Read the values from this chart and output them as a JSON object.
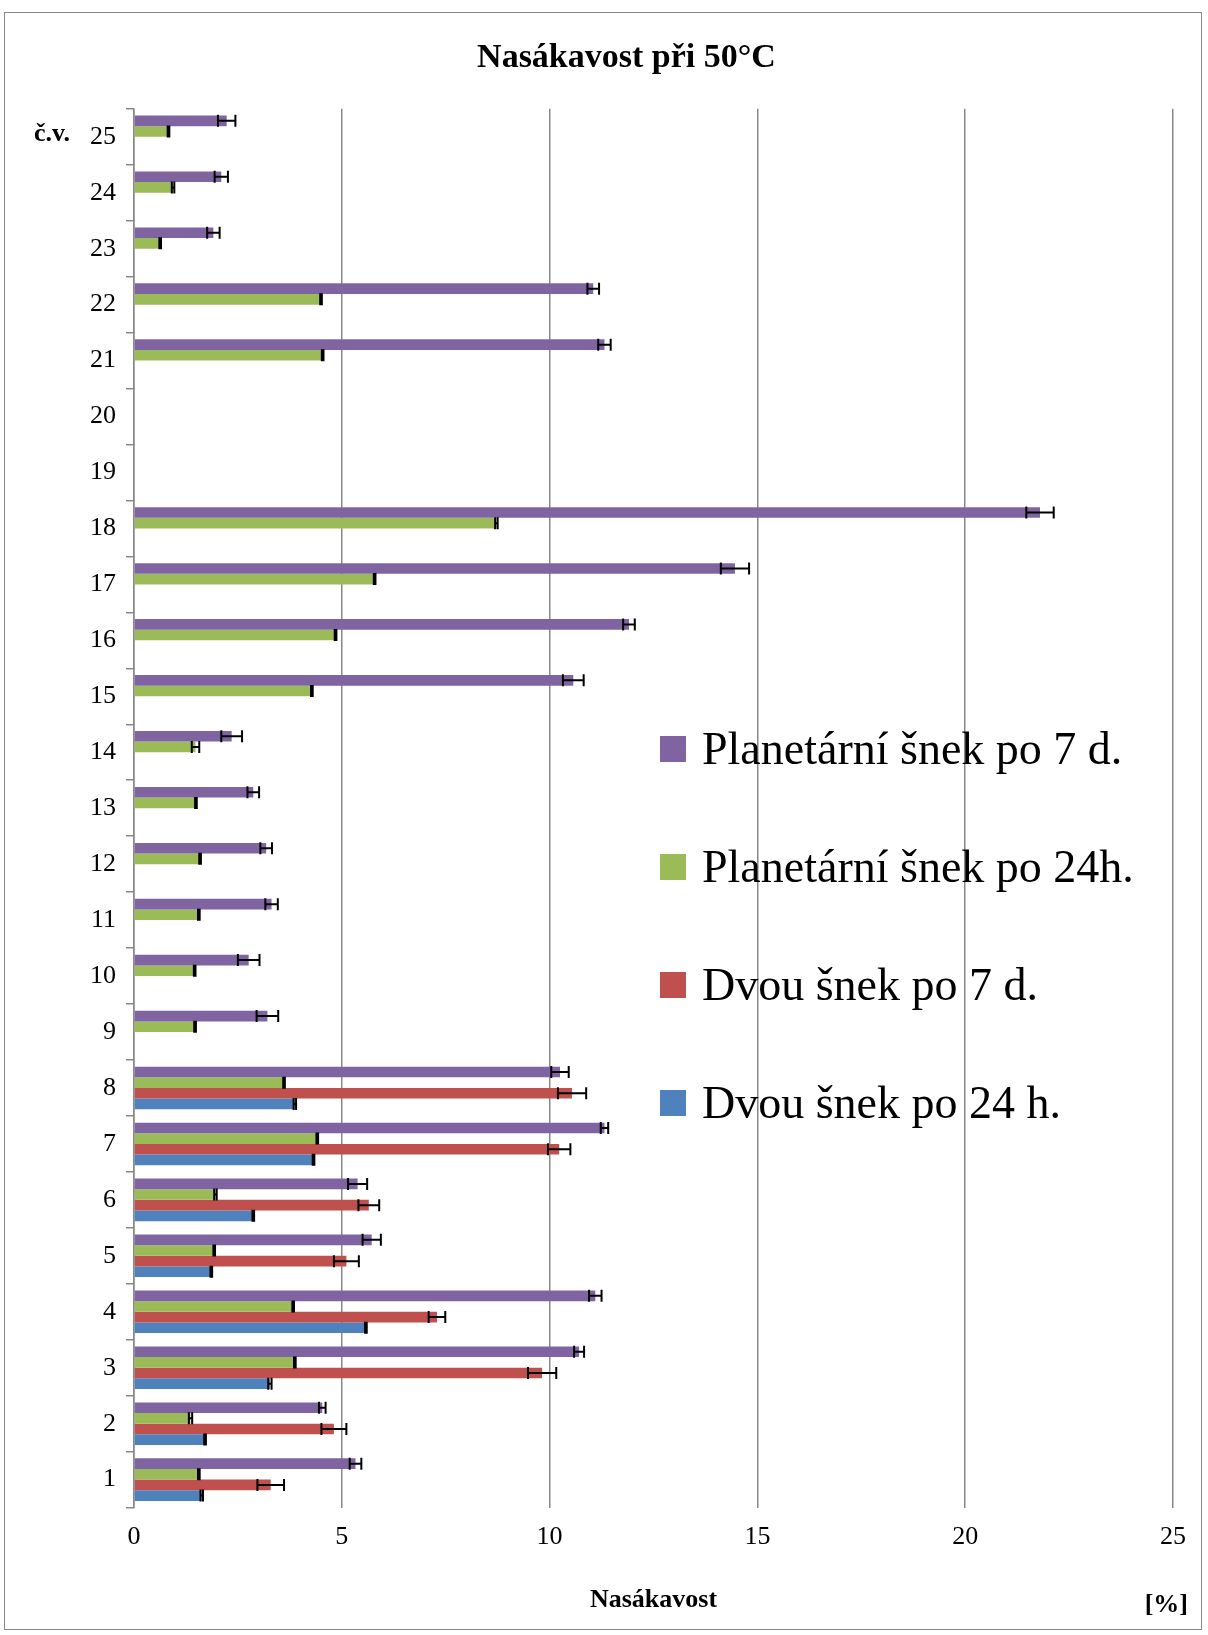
{
  "chart_data": {
    "type": "bar",
    "orientation": "horizontal",
    "title": "Nasákavost při 50°C",
    "xlabel": "Nasákavost",
    "ylabel": "č.v.",
    "annotations": [
      "[%]"
    ],
    "categories": [
      "25",
      "24",
      "23",
      "22",
      "21",
      "20",
      "19",
      "18",
      "17",
      "16",
      "15",
      "14",
      "13",
      "12",
      "11",
      "10",
      "9",
      "8",
      "7",
      "6",
      "5",
      "4",
      "3",
      "2",
      "1"
    ],
    "series": [
      {
        "name": "Planetární šnek po 7 d.",
        "color": "#8064a2",
        "values": [
          2.23,
          2.1,
          1.91,
          11.05,
          11.32,
          null,
          null,
          21.8,
          14.46,
          11.91,
          10.57,
          2.35,
          2.87,
          3.18,
          3.31,
          2.76,
          3.21,
          10.25,
          11.32,
          5.38,
          5.72,
          11.1,
          10.71,
          4.53,
          5.33
        ],
        "errors": [
          0.21,
          0.16,
          0.15,
          0.14,
          0.15,
          null,
          null,
          0.33,
          0.34,
          0.14,
          0.25,
          0.25,
          0.14,
          0.14,
          0.15,
          0.26,
          0.26,
          0.21,
          0.09,
          0.23,
          0.22,
          0.15,
          0.12,
          0.08,
          0.14
        ]
      },
      {
        "name": "Planetární šnek po 24h.",
        "color": "#9bbb59",
        "values": [
          0.83,
          0.94,
          0.63,
          4.5,
          4.54,
          null,
          null,
          8.72,
          5.79,
          4.85,
          4.28,
          1.48,
          1.49,
          1.59,
          1.56,
          1.46,
          1.47,
          3.61,
          4.41,
          1.96,
          1.93,
          3.83,
          3.87,
          1.36,
          1.56
        ],
        "errors": [
          0.02,
          0.03,
          0.02,
          0.02,
          0.02,
          null,
          null,
          0.03,
          0.02,
          0.02,
          0.02,
          0.09,
          0.02,
          0.02,
          0.02,
          0.02,
          0.02,
          0.02,
          0.02,
          0.03,
          0.02,
          0.02,
          0.02,
          0.04,
          0.02
        ]
      },
      {
        "name": "Dvou šnek po 7 d.",
        "color": "#c0504d",
        "values": [
          null,
          null,
          null,
          null,
          null,
          null,
          null,
          null,
          null,
          null,
          null,
          null,
          null,
          null,
          null,
          null,
          null,
          10.54,
          10.23,
          5.65,
          5.11,
          7.29,
          9.82,
          4.81,
          3.29
        ],
        "errors": [
          null,
          null,
          null,
          null,
          null,
          null,
          null,
          null,
          null,
          null,
          null,
          null,
          null,
          null,
          null,
          null,
          null,
          0.34,
          0.27,
          0.25,
          0.3,
          0.2,
          0.34,
          0.3,
          0.32
        ]
      },
      {
        "name": "Dvou šnek po 24 h.",
        "color": "#4f81bd",
        "values": [
          null,
          null,
          null,
          null,
          null,
          null,
          null,
          null,
          null,
          null,
          null,
          null,
          null,
          null,
          null,
          null,
          null,
          3.87,
          4.32,
          2.87,
          1.86,
          5.58,
          3.27,
          1.71,
          1.63
        ],
        "errors": [
          null,
          null,
          null,
          null,
          null,
          null,
          null,
          null,
          null,
          null,
          null,
          null,
          null,
          null,
          null,
          null,
          null,
          0.03,
          0.02,
          0.02,
          0.02,
          0.02,
          0.04,
          0.02,
          0.03
        ]
      }
    ],
    "xlim": [
      0,
      25
    ],
    "xticks": [
      0,
      5,
      10,
      15,
      20,
      25
    ],
    "grid": "x",
    "legend": "right"
  }
}
